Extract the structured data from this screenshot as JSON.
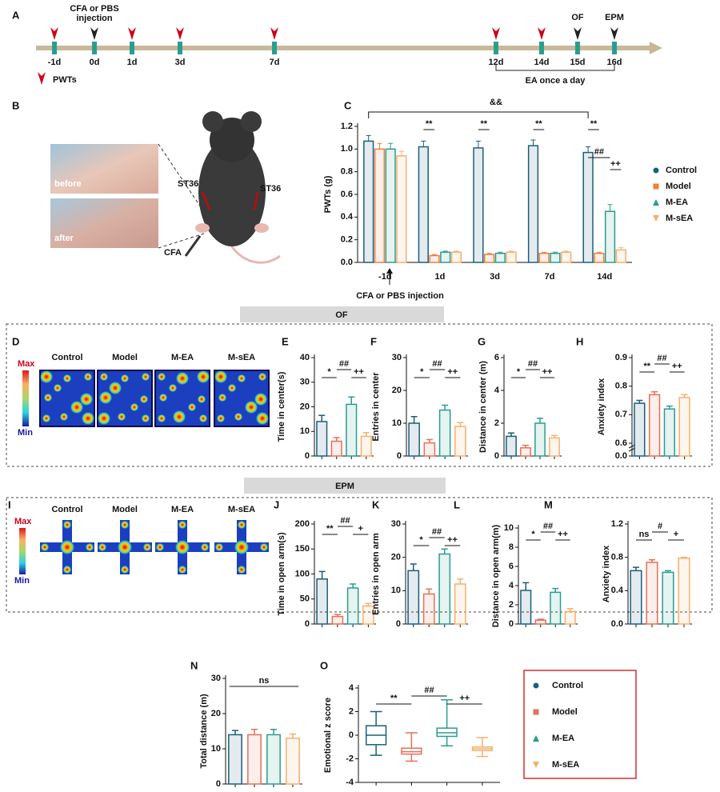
{
  "timeline": {
    "days": [
      "-1d",
      "0d",
      "1d",
      "3d",
      "7d",
      "12d",
      "14d",
      "15d",
      "16d"
    ],
    "injection_label": [
      "CFA or PBS",
      "injection"
    ],
    "of_label": "OF",
    "epm_label": "EPM",
    "pwts_legend": "PWTs",
    "ea_label": "EA once a day"
  },
  "panel_b": {
    "before": "before",
    "after": "after",
    "acupoints": [
      "ST36",
      "ST36"
    ],
    "cfa": "CFA"
  },
  "panel_labels": [
    "A",
    "B",
    "C",
    "D",
    "E",
    "F",
    "G",
    "H",
    "I",
    "J",
    "K",
    "L",
    "M",
    "N",
    "O"
  ],
  "section_titles": [
    "OF",
    "EPM"
  ],
  "heatmaps": {
    "groups": [
      "Control",
      "Model",
      "M-EA",
      "M-sEA"
    ],
    "max": "Max",
    "min": "Min"
  },
  "chart_data": [
    {
      "type": "grouped_bar",
      "ylabel": "PWTs (g)",
      "xlabel": "CFA or PBS injection",
      "categories": [
        "-1d",
        "1d",
        "3d",
        "7d",
        "14d"
      ],
      "series": [
        {
          "name": "Control",
          "color": "#1b5e7b",
          "values": [
            1.07,
            1.02,
            1.01,
            1.03,
            0.97
          ],
          "errors": [
            0.05,
            0.05,
            0.06,
            0.05,
            0.05
          ]
        },
        {
          "name": "Model",
          "color": "#ee7d3b",
          "values": [
            1.0,
            0.06,
            0.07,
            0.08,
            0.08
          ],
          "errors": [
            0.05,
            0.01,
            0.01,
            0.01,
            0.01
          ]
        },
        {
          "name": "M-EA",
          "color": "#2a9d8f",
          "values": [
            1.0,
            0.09,
            0.08,
            0.08,
            0.45
          ],
          "errors": [
            0.05,
            0.01,
            0.01,
            0.01,
            0.06
          ]
        },
        {
          "name": "M-sEA",
          "color": "#f5b06e",
          "values": [
            0.94,
            0.09,
            0.09,
            0.09,
            0.11
          ],
          "errors": [
            0.04,
            0.01,
            0.01,
            0.01,
            0.02
          ]
        }
      ],
      "ylim": [
        0,
        1.2
      ],
      "yticks": [
        {
          "value": 0,
          "label": "0.0"
        },
        {
          "value": 0.2,
          "label": "0.2"
        },
        {
          "value": 0.4,
          "label": "0.4"
        },
        {
          "value": 0.6,
          "label": "0.6"
        },
        {
          "value": 0.8,
          "label": "0.8"
        },
        {
          "value": 1,
          "label": "1.0"
        },
        {
          "value": 1.2,
          "label": "1.2"
        }
      ],
      "annotations": [
        "&&",
        "**",
        "**",
        "**",
        "**",
        "##",
        "++"
      ]
    },
    {
      "type": "bar",
      "ylabel": "Time in center(s)",
      "values": [
        14,
        6,
        21,
        8
      ],
      "errors": [
        2.5,
        1.5,
        3,
        1.5
      ],
      "colors": [
        "#1b5e7b",
        "#e5705a",
        "#2a9d8f",
        "#f5b06e"
      ],
      "ylim": [
        0,
        40
      ],
      "yticks": [
        0,
        10,
        20,
        30,
        40
      ],
      "annotations": [
        "*",
        "##",
        "++"
      ]
    },
    {
      "type": "bar",
      "ylabel": "Entries in center",
      "values": [
        10,
        4,
        14,
        9
      ],
      "errors": [
        2,
        1,
        1.5,
        1.2
      ],
      "colors": [
        "#1b5e7b",
        "#e5705a",
        "#2a9d8f",
        "#f5b06e"
      ],
      "ylim": [
        0,
        30
      ],
      "yticks": [
        0,
        10,
        20,
        30
      ],
      "annotations": [
        "*",
        "##",
        "++"
      ]
    },
    {
      "type": "bar",
      "ylabel": "Distance in center (m)",
      "values": [
        1.2,
        0.5,
        2.0,
        1.1
      ],
      "errors": [
        0.2,
        0.15,
        0.3,
        0.15
      ],
      "colors": [
        "#1b5e7b",
        "#e5705a",
        "#2a9d8f",
        "#f5b06e"
      ],
      "ylim": [
        0,
        6
      ],
      "yticks": [
        0,
        2,
        4,
        6
      ],
      "annotations": [
        "*",
        "##",
        "++"
      ]
    },
    {
      "type": "bar",
      "ylabel": "Anxiety index",
      "values": [
        0.74,
        0.77,
        0.72,
        0.76
      ],
      "errors": [
        0.01,
        0.01,
        0.01,
        0.01
      ],
      "colors": [
        "#1b5e7b",
        "#e5705a",
        "#2a9d8f",
        "#f5b06e"
      ],
      "ylim": [
        0,
        0.9
      ],
      "axis_break": [
        0,
        0.6
      ],
      "yticks": [
        {
          "value": 0,
          "label": "0.0"
        },
        {
          "value": 0.6,
          "label": "0.6"
        },
        {
          "value": 0.7,
          "label": "0.7"
        },
        {
          "value": 0.8,
          "label": "0.8"
        },
        {
          "value": 0.9,
          "label": "0.9"
        }
      ],
      "annotations": [
        "**",
        "##",
        "++"
      ]
    },
    {
      "type": "bar",
      "ylabel": "Time in open arm(s)",
      "values": [
        90,
        15,
        72,
        36
      ],
      "errors": [
        15,
        4,
        8,
        5
      ],
      "colors": [
        "#1b5e7b",
        "#e5705a",
        "#2a9d8f",
        "#f5b06e"
      ],
      "ylim": [
        0,
        200
      ],
      "yticks": [
        0,
        50,
        100,
        150,
        200
      ],
      "annotations": [
        "**",
        "##",
        "+"
      ]
    },
    {
      "type": "bar",
      "ylabel": "Entries in open arm",
      "values": [
        16,
        9,
        21,
        12
      ],
      "errors": [
        2,
        1.5,
        1.5,
        1.5
      ],
      "colors": [
        "#1b5e7b",
        "#e5705a",
        "#2a9d8f",
        "#f5b06e"
      ],
      "ylim": [
        0,
        30
      ],
      "yticks": [
        0,
        10,
        20,
        30
      ],
      "annotations": [
        "*",
        "##",
        "++"
      ]
    },
    {
      "type": "bar",
      "ylabel": "Distance in open arm(m)",
      "values": [
        3.5,
        0.4,
        3.3,
        1.3
      ],
      "errors": [
        0.8,
        0.1,
        0.4,
        0.3
      ],
      "colors": [
        "#1b5e7b",
        "#e5705a",
        "#2a9d8f",
        "#f5b06e"
      ],
      "ylim": [
        0,
        10
      ],
      "yticks": [
        0,
        2,
        4,
        6,
        8,
        10
      ],
      "annotations": [
        "*",
        "##",
        "++"
      ]
    },
    {
      "type": "bar",
      "ylabel": "Anxiety index",
      "values": [
        0.64,
        0.74,
        0.62,
        0.79
      ],
      "errors": [
        0.04,
        0.03,
        0.02,
        0.01
      ],
      "colors": [
        "#1b5e7b",
        "#e5705a",
        "#2a9d8f",
        "#f5b06e"
      ],
      "ylim": [
        0,
        1.2
      ],
      "yticks": [
        {
          "value": 0,
          "label": "0.0"
        },
        {
          "value": 0.4,
          "label": "0.4"
        },
        {
          "value": 0.8,
          "label": "0.8"
        },
        {
          "value": 1.2,
          "label": "1.2"
        }
      ],
      "annotations": [
        "ns",
        "#",
        "+"
      ]
    },
    {
      "type": "bar",
      "ylabel": "Total distance (m)",
      "values": [
        14,
        14,
        14,
        13
      ],
      "errors": [
        1.2,
        1.5,
        1.5,
        1.2
      ],
      "colors": [
        "#1b5e7b",
        "#e5705a",
        "#2a9d8f",
        "#f5b06e"
      ],
      "ylim": [
        0,
        30
      ],
      "yticks": [
        0,
        10,
        20,
        30
      ],
      "annotations": [
        "ns"
      ]
    },
    {
      "type": "box",
      "ylabel": "Emotional z score",
      "ylim": [
        -4,
        4
      ],
      "yticks": [
        -4,
        -2,
        0,
        2,
        4
      ],
      "series": [
        {
          "name": "Control",
          "color": "#1b5e7b",
          "min": -1.7,
          "q1": -0.8,
          "median": 0,
          "q3": 0.8,
          "max": 2.0
        },
        {
          "name": "Model",
          "color": "#e5705a",
          "min": -2.2,
          "q1": -1.6,
          "median": -1.4,
          "q3": -1.1,
          "max": 0.2
        },
        {
          "name": "M-EA",
          "color": "#2a9d8f",
          "min": -0.9,
          "q1": -0.1,
          "median": 0.2,
          "q3": 0.6,
          "max": 3.0
        },
        {
          "name": "M-sEA",
          "color": "#f5b06e",
          "min": -1.8,
          "q1": -1.3,
          "median": -1.15,
          "q3": -1.0,
          "max": -0.2
        }
      ],
      "annotations": [
        "**",
        "##",
        "++"
      ]
    }
  ]
}
